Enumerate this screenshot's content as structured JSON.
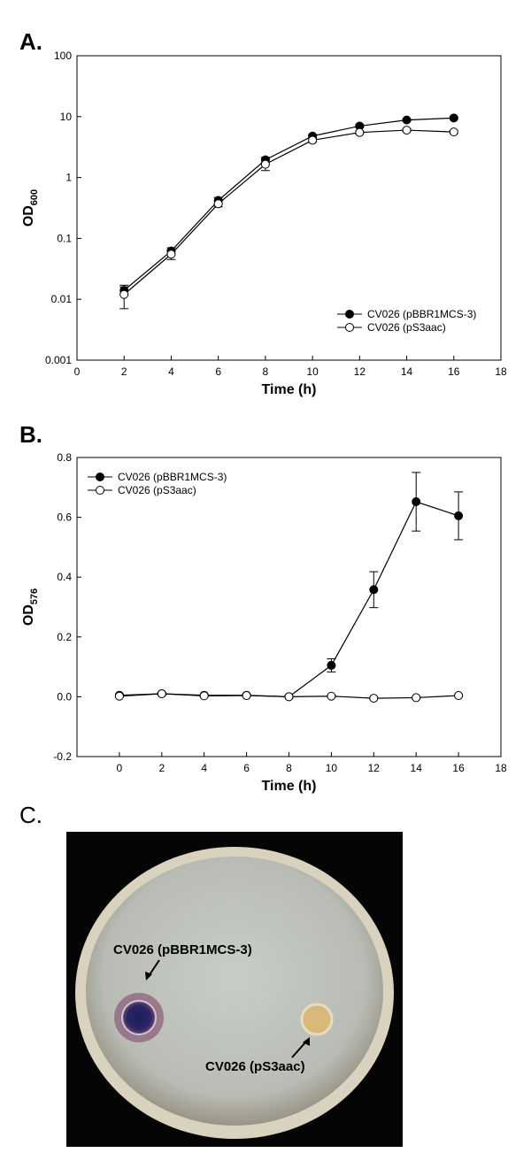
{
  "panel_labels": [
    "A.",
    "B.",
    "C."
  ],
  "chart_data": [
    {
      "type": "line",
      "y_label": "OD",
      "y_label_subscript": "600",
      "x_label": "Time (h)",
      "xlim": [
        0,
        18
      ],
      "xticks": [
        0,
        2,
        4,
        6,
        8,
        10,
        12,
        14,
        16,
        18
      ],
      "ylim": [
        0.001,
        100
      ],
      "yticks": [
        0.001,
        0.01,
        0.1,
        1,
        10,
        100
      ],
      "log_y": true,
      "legend": "lower right",
      "series": [
        {
          "name": "CV026 (pBBR1MCS-3)",
          "color": "#000000",
          "fill": "#000000",
          "x": [
            2,
            4,
            6,
            8,
            10,
            12,
            14,
            16
          ],
          "values": [
            0.014,
            0.062,
            0.42,
            1.95,
            4.8,
            7.0,
            8.8,
            9.5
          ],
          "errors": [
            0.002,
            0.008,
            0.05,
            0.2,
            0.3,
            0.3,
            0.3,
            0.3
          ]
        },
        {
          "name": "CV026 (pS3aac)",
          "color": "#000000",
          "fill": "#ffffff",
          "x": [
            2,
            4,
            6,
            8,
            10,
            12,
            14,
            16
          ],
          "values": [
            0.012,
            0.055,
            0.37,
            1.65,
            4.1,
            5.5,
            6.0,
            5.6
          ],
          "errors": [
            0.005,
            0.01,
            0.04,
            0.35,
            0.3,
            0.3,
            0.3,
            0.3
          ]
        }
      ]
    },
    {
      "type": "line",
      "y_label": "OD",
      "y_label_subscript": "576",
      "x_label": "Time (h)",
      "xlim": [
        -2,
        18
      ],
      "xticks": [
        0,
        2,
        4,
        6,
        8,
        10,
        12,
        14,
        16,
        18
      ],
      "ylim": [
        -0.2,
        0.8
      ],
      "yticks": [
        -0.2,
        {
          "value": 0,
          "label": "0.0"
        },
        0.2,
        0.4,
        0.6,
        0.8
      ],
      "log_y": false,
      "legend": "upper left",
      "series": [
        {
          "name": "CV026 (pBBR1MCS-3)",
          "color": "#000000",
          "fill": "#000000",
          "x": [
            0,
            2,
            4,
            6,
            8,
            10,
            12,
            14,
            16
          ],
          "values": [
            0.005,
            0.01,
            0.005,
            0.005,
            0,
            0.105,
            0.358,
            0.652,
            0.605
          ],
          "errors": [
            0.003,
            0.005,
            0.003,
            0.003,
            0.003,
            0.022,
            0.06,
            0.098,
            0.08
          ]
        },
        {
          "name": "CV026 (pS3aac)",
          "color": "#000000",
          "fill": "#ffffff",
          "x": [
            0,
            2,
            4,
            6,
            8,
            10,
            12,
            14,
            16
          ],
          "values": [
            0.002,
            0.01,
            0.003,
            0.004,
            0,
            0.002,
            -0.005,
            -0.003,
            0.004
          ],
          "errors": [
            0.003,
            0.003,
            0.003,
            0.003,
            0.003,
            0.003,
            0.003,
            0.003,
            0.003
          ]
        }
      ]
    }
  ],
  "photo": {
    "labels": [
      "CV026 (pBBR1MCS-3)",
      "CV026 (pS3aac)"
    ]
  }
}
